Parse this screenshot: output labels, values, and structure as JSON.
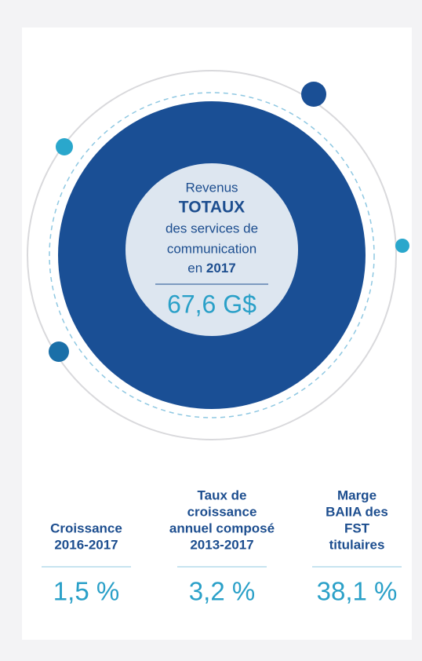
{
  "headline": {
    "line1": "Revenus",
    "line2": "TOTAUX",
    "line3": "des services de",
    "line4": "communication",
    "line5": "en",
    "year": "2017",
    "value": "67,6 G$"
  },
  "stats": [
    {
      "label": [
        "Croissance",
        "2016-2017"
      ],
      "value": "1,5 %"
    },
    {
      "label": [
        "Taux de",
        "croissance",
        "annuel composé",
        "2013-2017"
      ],
      "value": "3,2 %"
    },
    {
      "label": [
        "Marge",
        "BAIIA des",
        "FST",
        "titulaires"
      ],
      "value": "38,1 %"
    }
  ]
}
